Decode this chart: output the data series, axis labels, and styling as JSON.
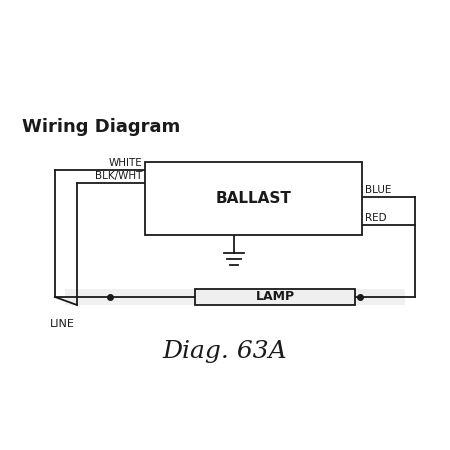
{
  "bg_color": "#ffffff",
  "line_color": "#1a1a1a",
  "title": "Wiring Diagram",
  "subtitle": "Diag. 63A",
  "ballast_label": "BALLAST",
  "lamp_label": "LAMP",
  "white_label": "WHITE",
  "blkwht_label": "BLK/WHT",
  "blue_label": "BLUE",
  "red_label": "RED",
  "line_label": "LINE",
  "title_fontsize": 13,
  "subtitle_fontsize": 18,
  "label_fontsize": 7.5
}
